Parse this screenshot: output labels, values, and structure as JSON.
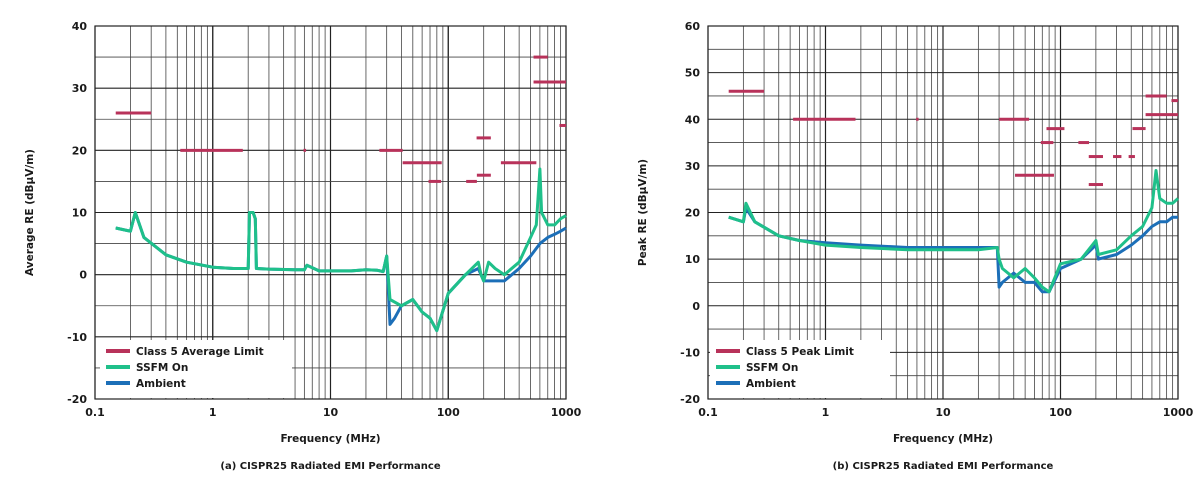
{
  "chart_data": [
    {
      "type": "line",
      "caption": "(a) CISPR25 Radiated EMI Performance",
      "xlabel": "Frequency (MHz)",
      "ylabel": "Average RE (dBµV/m)",
      "xscale": "log",
      "xlim": [
        0.1,
        1000
      ],
      "ylim": [
        -20,
        40
      ],
      "xticks": [
        "0.1",
        "1",
        "10",
        "100",
        "1000"
      ],
      "yticks": [
        "-20",
        "-10",
        "0",
        "10",
        "20",
        "30",
        "40"
      ],
      "grid": true,
      "legend_position": "bottom-left",
      "legend": [
        "Class 5 Average Limit",
        "SSFM On",
        "Ambient"
      ],
      "colors": {
        "limit": "#b8325a",
        "ssfm": "#1fc08a",
        "ambient": "#1c6fb8"
      },
      "limit_segments": [
        {
          "x": [
            0.15,
            0.3
          ],
          "y": 26
        },
        {
          "x": [
            0.53,
            1.8
          ],
          "y": 20
        },
        {
          "x": [
            5.9,
            6.2
          ],
          "y": 20
        },
        {
          "x": [
            26,
            41
          ],
          "y": 20
        },
        {
          "x": [
            41,
            88
          ],
          "y": 18
        },
        {
          "x": [
            68,
            87
          ],
          "y": 15
        },
        {
          "x": [
            142,
            175
          ],
          "y": 15
        },
        {
          "x": [
            175,
            230
          ],
          "y": 16
        },
        {
          "x": [
            174,
            230
          ],
          "y": 22
        },
        {
          "x": [
            280,
            380
          ],
          "y": 18
        },
        {
          "x": [
            380,
            560
          ],
          "y": 18
        },
        {
          "x": [
            530,
            700
          ],
          "y": 35
        },
        {
          "x": [
            530,
            1000
          ],
          "y": 31
        },
        {
          "x": [
            880,
            1000
          ],
          "y": 24
        }
      ],
      "series": [
        {
          "name": "SSFM On",
          "x": [
            0.15,
            0.2,
            0.22,
            0.26,
            0.4,
            0.6,
            1,
            1.5,
            1.9,
            2.0,
            2.05,
            2.2,
            2.3,
            2.35,
            3,
            5,
            6,
            6.3,
            8,
            10,
            15,
            20,
            25,
            28,
            30,
            32,
            40,
            50,
            60,
            70,
            80,
            100,
            140,
            180,
            190,
            200,
            220,
            250,
            300,
            400,
            500,
            560,
            600,
            620,
            700,
            800,
            900,
            1000
          ],
          "y": [
            7.5,
            7,
            10,
            6,
            3.2,
            2,
            1.2,
            1,
            1,
            1,
            10,
            10,
            9,
            1,
            0.9,
            0.8,
            0.8,
            1.5,
            0.6,
            0.6,
            0.6,
            0.8,
            0.7,
            0.5,
            3,
            -4,
            -5,
            -4,
            -6,
            -7,
            -9,
            -3,
            0,
            2,
            0,
            -1,
            2,
            1,
            0,
            2,
            6,
            8,
            17,
            10,
            8,
            8,
            9,
            9.5
          ]
        },
        {
          "name": "Ambient",
          "x": [
            0.15,
            0.2,
            0.22,
            0.26,
            0.4,
            0.6,
            1,
            1.5,
            1.9,
            2.0,
            2.05,
            2.2,
            2.3,
            2.35,
            3,
            5,
            6,
            6.3,
            8,
            10,
            15,
            20,
            25,
            28,
            30,
            32,
            35,
            40,
            50,
            60,
            70,
            80,
            100,
            140,
            180,
            200,
            250,
            300,
            400,
            500,
            600,
            700,
            800,
            900,
            1000
          ],
          "y": [
            7.5,
            7,
            10,
            6,
            3.2,
            2,
            1.2,
            1,
            1,
            1,
            10,
            10,
            9,
            1,
            0.9,
            0.8,
            0.8,
            1.5,
            0.6,
            0.6,
            0.6,
            0.8,
            0.7,
            0.5,
            3,
            -8,
            -7,
            -5,
            -4,
            -6,
            -7,
            -9,
            -3,
            0,
            1,
            -1,
            -1,
            -1,
            1,
            3,
            5,
            6,
            6.5,
            7,
            7.5
          ]
        }
      ]
    },
    {
      "type": "line",
      "caption": "(b) CISPR25 Radiated EMI Performance",
      "xlabel": "Frequency (MHz)",
      "ylabel": "Peak RE (dBµV/m)",
      "xscale": "log",
      "xlim": [
        0.1,
        1000
      ],
      "ylim": [
        -20,
        60
      ],
      "xticks": [
        "0.1",
        "1",
        "10",
        "100",
        "1000"
      ],
      "yticks": [
        "-20",
        "-10",
        "0",
        "10",
        "20",
        "30",
        "40",
        "50",
        "60"
      ],
      "grid": true,
      "legend_position": "bottom-left",
      "legend": [
        "Class 5 Peak Limit",
        "SSFM On",
        "Ambient"
      ],
      "colors": {
        "limit": "#b8325a",
        "ssfm": "#1fc08a",
        "ambient": "#1c6fb8"
      },
      "limit_segments": [
        {
          "x": [
            0.15,
            0.3
          ],
          "y": 46
        },
        {
          "x": [
            0.53,
            1.8
          ],
          "y": 40
        },
        {
          "x": [
            5.9,
            6.2
          ],
          "y": 40
        },
        {
          "x": [
            30,
            54
          ],
          "y": 40
        },
        {
          "x": [
            41,
            88
          ],
          "y": 28
        },
        {
          "x": [
            68,
            87
          ],
          "y": 35
        },
        {
          "x": [
            76,
            108
          ],
          "y": 38
        },
        {
          "x": [
            142,
            175
          ],
          "y": 35
        },
        {
          "x": [
            174,
            230
          ],
          "y": 32
        },
        {
          "x": [
            174,
            230
          ],
          "y": 26
        },
        {
          "x": [
            280,
            330
          ],
          "y": 32
        },
        {
          "x": [
            380,
            430
          ],
          "y": 32
        },
        {
          "x": [
            410,
            530
          ],
          "y": 38
        },
        {
          "x": [
            530,
            1000
          ],
          "y": 41
        },
        {
          "x": [
            530,
            800
          ],
          "y": 45
        },
        {
          "x": [
            880,
            1000
          ],
          "y": 44
        }
      ],
      "series": [
        {
          "name": "SSFM On",
          "x": [
            0.15,
            0.2,
            0.21,
            0.25,
            0.4,
            0.6,
            1,
            2,
            5,
            10,
            20,
            29,
            30,
            32,
            40,
            50,
            60,
            70,
            80,
            100,
            150,
            200,
            210,
            300,
            400,
            500,
            600,
            650,
            700,
            800,
            900,
            1000
          ],
          "y": [
            19,
            18,
            22,
            18,
            15,
            14,
            13,
            12.5,
            12,
            12,
            12,
            12.5,
            10,
            8,
            6,
            8,
            6,
            4,
            3,
            9,
            10,
            14,
            11,
            12,
            15,
            17,
            21,
            29,
            23,
            22,
            22,
            23
          ]
        },
        {
          "name": "Ambient",
          "x": [
            0.15,
            0.2,
            0.21,
            0.25,
            0.4,
            0.6,
            1,
            2,
            5,
            10,
            20,
            29,
            30,
            32,
            40,
            50,
            60,
            70,
            80,
            100,
            150,
            200,
            210,
            300,
            400,
            500,
            600,
            700,
            800,
            900,
            1000
          ],
          "y": [
            19,
            18,
            21,
            18,
            15,
            14,
            13.5,
            13,
            12.5,
            12.5,
            12.5,
            12.5,
            4,
            5,
            7,
            5,
            5,
            3,
            3,
            8,
            10,
            13,
            10,
            11,
            13,
            15,
            17,
            18,
            18,
            19,
            19
          ]
        }
      ]
    }
  ]
}
